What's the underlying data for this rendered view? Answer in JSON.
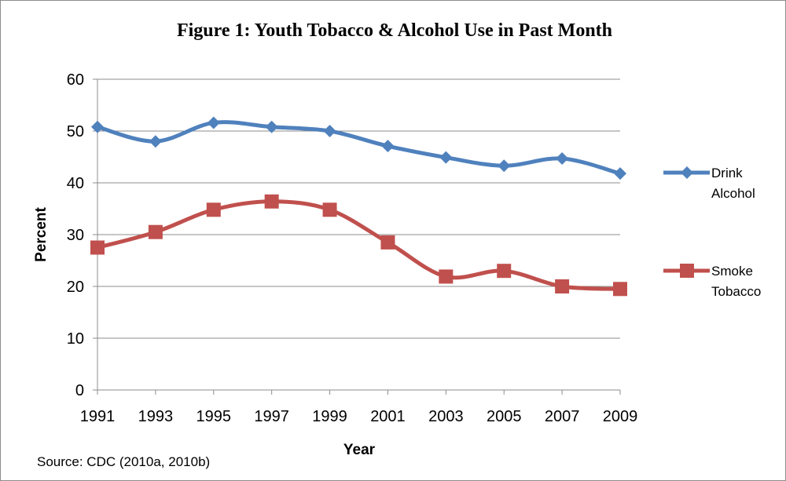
{
  "chart_data": {
    "type": "line",
    "title": "Figure 1: Youth Tobacco & Alcohol Use in Past Month",
    "xlabel": "Year",
    "ylabel": "Percent",
    "x": [
      "1991",
      "1993",
      "1995",
      "1997",
      "1999",
      "2001",
      "2003",
      "2005",
      "2007",
      "2009"
    ],
    "ylim": [
      0,
      60
    ],
    "yticks": [
      0,
      10,
      20,
      30,
      40,
      50,
      60
    ],
    "grid": true,
    "legend_position": "right",
    "series": [
      {
        "name_lines": [
          "Drink",
          "Alcohol"
        ],
        "color": "#4f81bd",
        "marker": "diamond",
        "values": [
          50.8,
          48.0,
          51.6,
          50.8,
          50.0,
          47.1,
          44.9,
          43.3,
          44.7,
          41.8
        ]
      },
      {
        "name_lines": [
          "Smoke",
          "Tobacco"
        ],
        "color": "#c0504d",
        "marker": "square",
        "values": [
          27.5,
          30.5,
          34.8,
          36.4,
          34.8,
          28.5,
          21.9,
          23.0,
          20.0,
          19.5
        ]
      }
    ],
    "source": "Source: CDC (2010a, 2010b)"
  }
}
